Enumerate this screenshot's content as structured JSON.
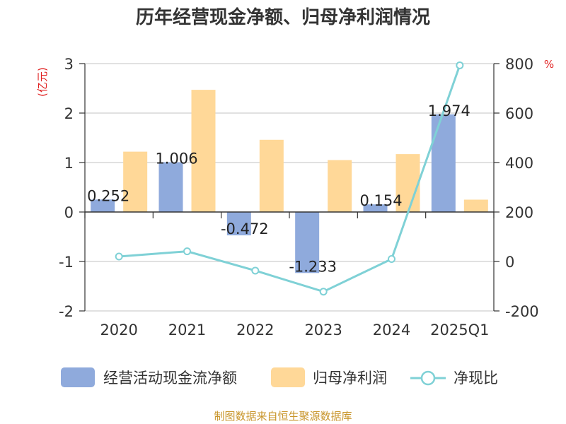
{
  "chart_data": {
    "type": "bar+line",
    "title": "历年经营现金净额、归母净利润情况",
    "left_unit": "(亿元)",
    "right_unit": "%",
    "categories": [
      "2020",
      "2021",
      "2022",
      "2023",
      "2024",
      "2025Q1"
    ],
    "left_axis": {
      "min": -2,
      "max": 3,
      "ticks": [
        3,
        2,
        1,
        0,
        -1,
        -2
      ],
      "tick_labels": [
        "3",
        "2",
        "1",
        "0",
        "-1",
        "-2"
      ]
    },
    "right_axis": {
      "min": -200,
      "max": 800,
      "ticks": [
        800,
        600,
        400,
        200,
        0,
        -200
      ],
      "tick_labels": [
        "800",
        "600",
        "400",
        "200",
        "0",
        "-200"
      ]
    },
    "series": [
      {
        "name": "经营活动现金流净额",
        "type": "bar",
        "axis": "left",
        "color": "#8faadc",
        "values": [
          0.252,
          1.006,
          -0.472,
          -1.233,
          0.154,
          1.974
        ],
        "labels": [
          "0.252",
          "1.006",
          "-0.472",
          "-1.233",
          "0.154",
          "1.974"
        ]
      },
      {
        "name": "归母净利润",
        "type": "bar",
        "axis": "left",
        "color": "#ffd898",
        "values": [
          1.22,
          2.47,
          1.46,
          1.05,
          1.17,
          0.25
        ]
      },
      {
        "name": "净现比",
        "type": "line",
        "axis": "right",
        "color": "#7fd1d6",
        "values": [
          20,
          41,
          -37,
          -122,
          10,
          793
        ]
      }
    ],
    "grid": true,
    "legend_position": "bottom"
  },
  "legend": [
    {
      "label": "经营活动现金流净额"
    },
    {
      "label": "归母净利润"
    },
    {
      "label": "净现比"
    }
  ],
  "source": "制图数据来自恒生聚源数据库"
}
